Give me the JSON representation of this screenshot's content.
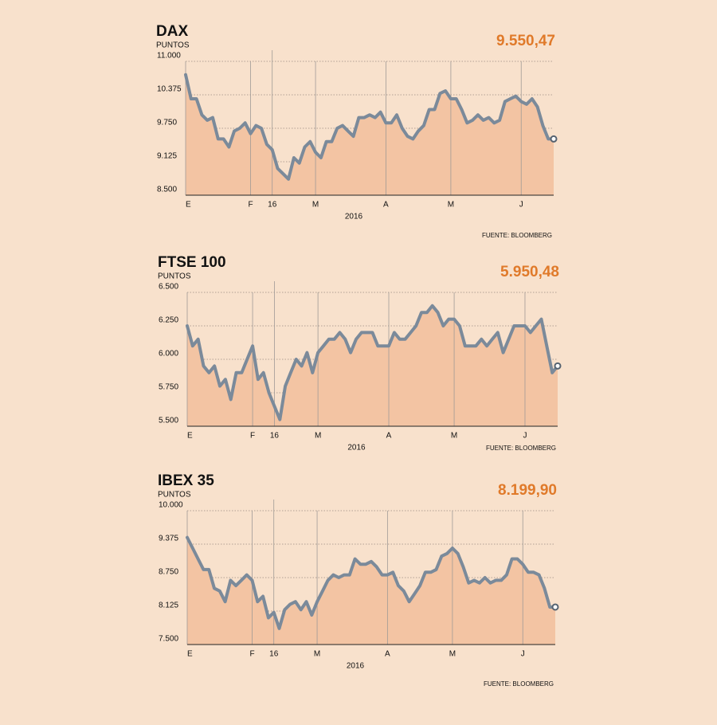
{
  "chart_data": [
    {
      "type": "area",
      "title": "DAX",
      "subtitle": "PUNTOS",
      "annotation": "9.550,47",
      "xlabel": "2016",
      "source": "FUENTE: BLOOMBERG",
      "line_color": "#7b8a9a",
      "fill_color": "#f3c4a3",
      "values": [
        10750,
        10300,
        10300,
        10000,
        9900,
        9950,
        9550,
        9550,
        9400,
        9700,
        9750,
        9850,
        9650,
        9800,
        9750,
        9450,
        9350,
        9000,
        8900,
        8800,
        9200,
        9100,
        9400,
        9500,
        9300,
        9200,
        9500,
        9500,
        9750,
        9800,
        9700,
        9600,
        9950,
        9950,
        10000,
        9950,
        10050,
        9850,
        9850,
        10000,
        9750,
        9600,
        9550,
        9700,
        9800,
        10100,
        10100,
        10400,
        10450,
        10300,
        10300,
        10100,
        9850,
        9900,
        10000,
        9900,
        9950,
        9850,
        9900,
        10250,
        10300,
        10350,
        10250,
        10200,
        10300,
        10150,
        9800,
        9550,
        9550.47
      ],
      "xlim": [
        0,
        68
      ],
      "xticks": [
        {
          "value": 0,
          "label": "E"
        },
        {
          "value": 12,
          "label": "F"
        },
        {
          "value": 24,
          "label": "M"
        },
        {
          "value": 37,
          "label": "A"
        },
        {
          "value": 49,
          "label": "M"
        },
        {
          "value": 62,
          "label": "J"
        },
        16
      ],
      "ylim": [
        8500,
        11000
      ],
      "yticks": [
        {
          "value": 8500,
          "label": "8.500"
        },
        {
          "value": 9125,
          "label": "9.125"
        },
        {
          "value": 9750,
          "label": "9.750"
        },
        {
          "value": 10375,
          "label": "10.375"
        },
        {
          "value": 11000,
          "label": "11.000"
        }
      ]
    },
    {
      "type": "area",
      "title": "FTSE 100",
      "subtitle": "PUNTOS",
      "annotation": "5.950,48",
      "xlabel": "2016",
      "source": "FUENTE: BLOOMBERG",
      "line_color": "#7b8a9a",
      "fill_color": "#f3c4a3",
      "values": [
        6250,
        6100,
        6150,
        5950,
        5900,
        5950,
        5800,
        5850,
        5700,
        5900,
        5900,
        6000,
        6100,
        5850,
        5900,
        5750,
        5650,
        5550,
        5800,
        5900,
        6000,
        5950,
        6050,
        5900,
        6050,
        6100,
        6150,
        6150,
        6200,
        6150,
        6050,
        6150,
        6200,
        6200,
        6200,
        6100,
        6100,
        6100,
        6200,
        6150,
        6150,
        6200,
        6250,
        6350,
        6350,
        6400,
        6350,
        6250,
        6300,
        6300,
        6250,
        6100,
        6100,
        6100,
        6150,
        6100,
        6150,
        6200,
        6050,
        6150,
        6250,
        6250,
        6250,
        6200,
        6250,
        6300,
        6100,
        5900,
        5950.48
      ],
      "xlim": [
        0,
        68
      ],
      "xticks": [
        {
          "value": 0,
          "label": "E"
        },
        {
          "value": 12,
          "label": "F"
        },
        {
          "value": 24,
          "label": "M"
        },
        {
          "value": 37,
          "label": "A"
        },
        {
          "value": 49,
          "label": "M"
        },
        {
          "value": 62,
          "label": "J"
        },
        16
      ],
      "ylim": [
        5500,
        6500
      ],
      "yticks": [
        {
          "value": 5500,
          "label": "5.500"
        },
        {
          "value": 5750,
          "label": "5.750"
        },
        {
          "value": 6000,
          "label": "6.000"
        },
        {
          "value": 6250,
          "label": "6.250"
        },
        {
          "value": 6500,
          "label": "6.500"
        }
      ]
    },
    {
      "type": "area",
      "title": "IBEX 35",
      "subtitle": "PUNTOS",
      "annotation": "8.199,90",
      "xlabel": "2016",
      "source": "FUENTE: BLOOMBERG",
      "line_color": "#7b8a9a",
      "fill_color": "#f3c4a3",
      "values": [
        9500,
        9300,
        9100,
        8900,
        8900,
        8550,
        8500,
        8300,
        8700,
        8600,
        8700,
        8800,
        8700,
        8300,
        8400,
        8000,
        8100,
        7800,
        8150,
        8250,
        8300,
        8150,
        8300,
        8050,
        8300,
        8500,
        8700,
        8800,
        8750,
        8800,
        8800,
        9100,
        9000,
        9000,
        9050,
        8950,
        8800,
        8800,
        8850,
        8600,
        8500,
        8300,
        8450,
        8600,
        8850,
        8850,
        8900,
        9150,
        9200,
        9300,
        9200,
        8950,
        8650,
        8700,
        8650,
        8750,
        8650,
        8700,
        8700,
        8800,
        9100,
        9100,
        9000,
        8850,
        8850,
        8800,
        8550,
        8200,
        8199.9
      ],
      "xlim": [
        0,
        68
      ],
      "xticks": [
        {
          "value": 0,
          "label": "E"
        },
        {
          "value": 12,
          "label": "F"
        },
        {
          "value": 24,
          "label": "M"
        },
        {
          "value": 37,
          "label": "A"
        },
        {
          "value": 49,
          "label": "M"
        },
        {
          "value": 62,
          "label": "J"
        },
        16
      ],
      "ylim": [
        7500,
        10000
      ],
      "yticks": [
        {
          "value": 7500,
          "label": "7.500"
        },
        {
          "value": 8125,
          "label": "8.125"
        },
        {
          "value": 8750,
          "label": "8.750"
        },
        {
          "value": 9375,
          "label": "9.375"
        },
        {
          "value": 10000,
          "label": "10.000"
        }
      ]
    }
  ]
}
